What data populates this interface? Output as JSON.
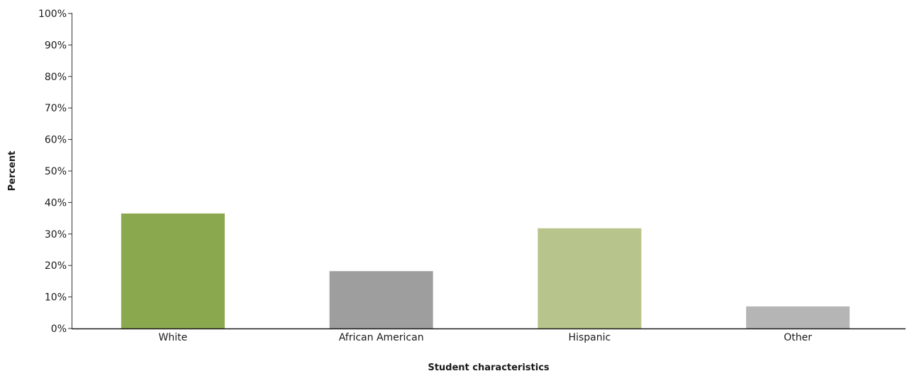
{
  "chart_data": {
    "type": "bar",
    "categories": [
      "White",
      "African American",
      "Hispanic",
      "Other"
    ],
    "values": [
      36.5,
      18.2,
      31.8,
      7.0
    ],
    "colors": [
      "#8aa84e",
      "#9e9e9e",
      "#b7c48b",
      "#b5b5b5"
    ],
    "xlabel": "Student characteristics",
    "ylabel": "Percent",
    "ylim": [
      0,
      100
    ],
    "yticks": [
      "0%",
      "10%",
      "20%",
      "30%",
      "40%",
      "50%",
      "60%",
      "70%",
      "80%",
      "90%",
      "100%"
    ],
    "ytick_values": [
      0,
      10,
      20,
      30,
      40,
      50,
      60,
      70,
      80,
      90,
      100
    ],
    "grid": false,
    "legend": "none"
  }
}
